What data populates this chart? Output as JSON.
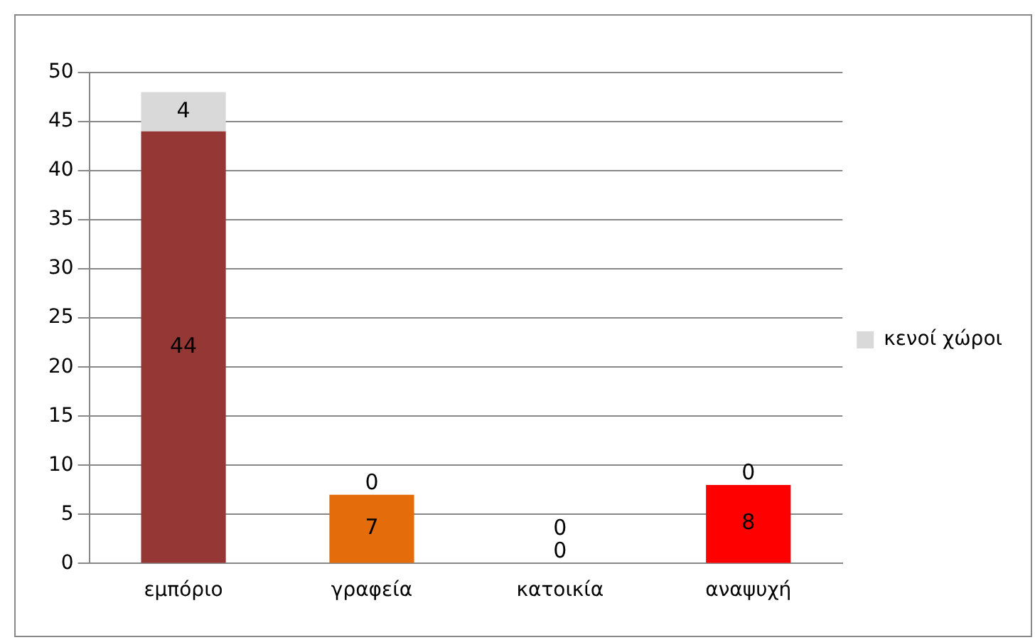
{
  "chart_data": {
    "type": "bar",
    "stacked": true,
    "categories": [
      "εμπόριο",
      "γραφεία",
      "κατοικία",
      "αναψυχή"
    ],
    "series": [
      {
        "colors": [
          "#953735",
          "#e46c0a",
          "#a6a6a6",
          "#ff0000"
        ],
        "values": [
          44,
          7,
          0,
          8
        ]
      },
      {
        "name": "κενοί χώροι",
        "color": "#d9d9d9",
        "values": [
          4,
          0,
          0,
          0
        ]
      }
    ],
    "ylim": [
      0,
      50
    ],
    "yticks": [
      0,
      5,
      10,
      15,
      20,
      25,
      30,
      35,
      40,
      45,
      50
    ],
    "grid": "y",
    "legend": "right",
    "data_labels": true
  }
}
